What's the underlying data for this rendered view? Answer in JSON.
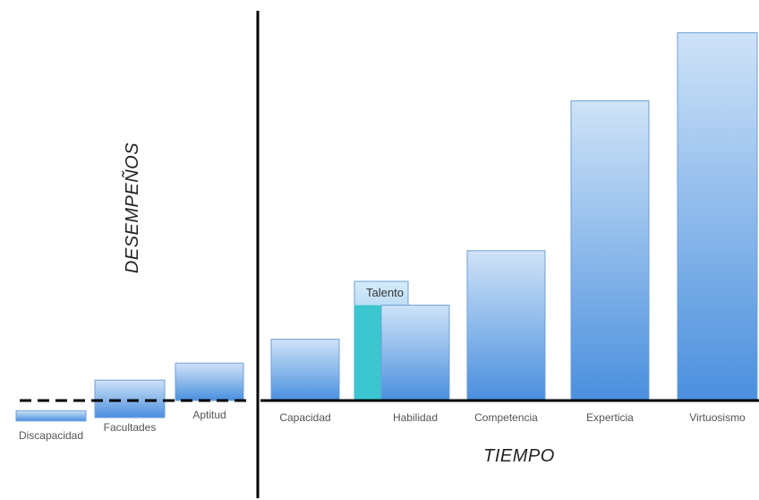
{
  "chart_data": {
    "type": "bar",
    "xlabel": "TIEMPO",
    "ylabel": "DESEMPEÑOS",
    "baseline_style": "dashed line on the left section, solid line on the right section",
    "left_categories": [
      "Discapacidad",
      "Facultades",
      "Aptitud"
    ],
    "left_values_range": [
      [
        -0.3,
        -0.15
      ],
      [
        -0.25,
        0.3
      ],
      [
        0,
        0.55
      ]
    ],
    "right_categories": [
      "Capacidad",
      "Habilidad",
      "Competencia",
      "Experticia",
      "Virtuosismo"
    ],
    "right_values": [
      0.9,
      1.4,
      2.2,
      4.4,
      5.4
    ],
    "overlay": {
      "label": "Talento",
      "category": "Habilidad",
      "value": 1.75,
      "color": "#3cc6cf"
    },
    "ylim": [
      -0.4,
      5.6
    ],
    "colors": {
      "bar_top": "#cfe3f8",
      "bar_bottom": "#4a8fde",
      "bar_stroke": "#6d9fd4"
    }
  }
}
